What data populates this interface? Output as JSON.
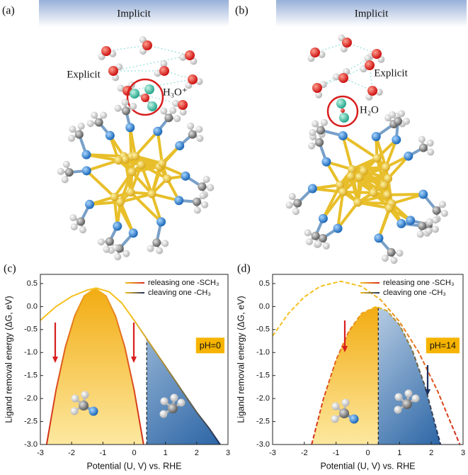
{
  "panels": [
    {
      "label": "(a)",
      "implicit": "Implicit",
      "explicit": "Explicit",
      "species": "H₃O⁺"
    },
    {
      "label": "(b)",
      "implicit": "Implicit",
      "explicit": "Explicit",
      "species": "H₂O"
    }
  ],
  "chart_data": [
    {
      "type": "line",
      "panel_label": "(c)",
      "xlabel": "Potential (U, V) vs. RHE",
      "ylabel": "Ligand removal energy (ΔG, eV)",
      "xlim": [
        -3,
        3
      ],
      "xticks": [
        -3,
        -2,
        -1,
        0,
        1,
        2,
        3
      ],
      "ylim": [
        -3.0,
        0.7
      ],
      "yticks": [
        {
          "value": -3,
          "label": "-3.0"
        },
        -2.5,
        {
          "value": -2,
          "label": "-2.0"
        },
        -1.5,
        {
          "value": -1,
          "label": "-1.0"
        },
        -0.5,
        {
          "value": 0,
          "label": "0.0"
        },
        0.5
      ],
      "line_style": "solid",
      "divider_x": 0.4,
      "annotation": "pH=0",
      "series": [
        {
          "name": "releasing one -SCH₃",
          "colors": [
            "#d42a1a",
            "#f5c020",
            "#d42a1a"
          ],
          "x": [
            -2.8,
            -2.5,
            -2.2,
            -1.9,
            -1.6,
            -1.25,
            -0.9,
            -0.6,
            -0.3,
            0,
            0.3
          ],
          "values": [
            -3.0,
            -1.82,
            -0.88,
            -0.2,
            0.23,
            0.4,
            0.23,
            -0.2,
            -0.88,
            -1.82,
            -3.0
          ]
        },
        {
          "name": "cleaving one -CH₃",
          "colors": [
            "#f5c020",
            "#f5c020",
            "#1c2f5e"
          ],
          "x": [
            -3,
            -2.5,
            -2,
            -1.5,
            -1.2,
            -0.8,
            -0.4,
            0,
            0.4,
            0.8,
            1.2,
            1.6,
            2,
            2.4,
            2.75
          ],
          "values": [
            -0.3,
            0.0,
            0.22,
            0.36,
            0.4,
            0.32,
            0.08,
            -0.3,
            -0.7,
            -1.1,
            -1.5,
            -1.9,
            -2.3,
            -2.65,
            -3.0
          ]
        }
      ]
    },
    {
      "type": "line",
      "panel_label": "(d)",
      "xlabel": "Potential (U, V) vs. RHE",
      "ylabel": "Ligand removal energy (ΔG, eV)",
      "xlim": [
        -3,
        3
      ],
      "xticks": [
        -3,
        -2,
        -1,
        0,
        1,
        2,
        3
      ],
      "ylim": [
        -3.0,
        0.7
      ],
      "yticks": [
        {
          "value": -3,
          "label": "-3.0"
        },
        -2.5,
        {
          "value": -2,
          "label": "-2.0"
        },
        -1.5,
        {
          "value": -1,
          "label": "-1.0"
        },
        -0.5,
        {
          "value": 0,
          "label": "0.0"
        },
        0.5
      ],
      "line_style": "dashed",
      "divider_x": 0.33,
      "annotation": "pH=14",
      "series": [
        {
          "name": "releasing one -SCH₃",
          "colors": [
            "#f5c020",
            "#f5c020",
            "#d42a1a"
          ],
          "x": [
            -3,
            -2.5,
            -2,
            -1.5,
            -0.85,
            -0.2,
            0.4,
            1,
            1.6,
            2.2,
            2.6,
            2.9
          ],
          "values": [
            -0.64,
            -0.15,
            0.21,
            0.44,
            0.55,
            0.44,
            0.15,
            -0.33,
            -0.99,
            -1.84,
            -2.51,
            -3.0
          ]
        },
        {
          "name": "cleaving one -CH₃",
          "colors": [
            "#d42a1a",
            "#f5c020",
            "#1c2f5e"
          ],
          "x": [
            -1.77,
            -1.4,
            -1,
            -0.6,
            -0.2,
            0.26,
            0.6,
            1,
            1.4,
            1.8,
            2.29
          ],
          "values": [
            -3.0,
            -2.01,
            -1.16,
            -0.54,
            -0.15,
            0.0,
            -0.09,
            -0.4,
            -0.95,
            -1.73,
            -3.0
          ]
        }
      ]
    }
  ]
}
